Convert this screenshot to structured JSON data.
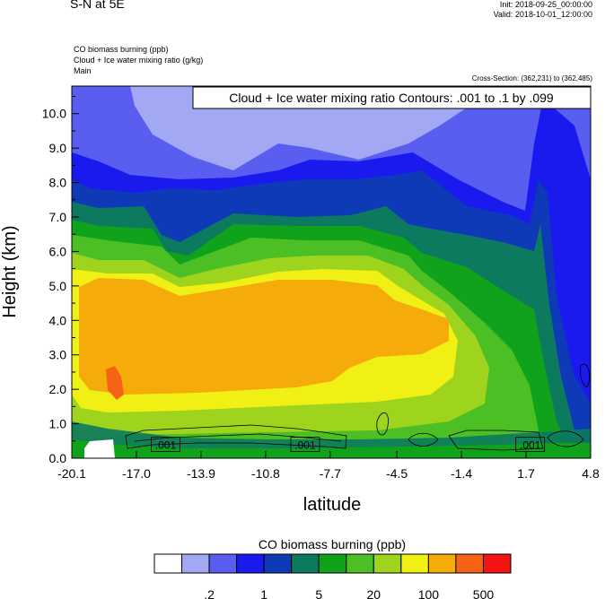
{
  "header": {
    "title": "S-N at 5E",
    "init": "Init: 2018-09-25_00:00:00",
    "valid": "Valid: 2018-10-01_12:00:00",
    "var1": "CO biomass burning   (ppb)",
    "var2": "Cloud + Ice water mixing ratio   (g/kg)",
    "var3": "Main",
    "cross_section": "Cross-Section: (362,231) to (362,485)"
  },
  "chart_data": {
    "type": "heatmap",
    "xlabel": "latitude",
    "ylabel": "Height (km)",
    "xlim": [
      -20.1,
      4.8
    ],
    "ylim": [
      0,
      10.8
    ],
    "x_ticks": [
      "-20.1",
      "-17.0",
      "-13.9",
      "-10.8",
      "-7.7",
      "-4.5",
      "-1.4",
      "1.7",
      "4.8"
    ],
    "y_ticks": [
      "0.0",
      "1.0",
      "2.0",
      "3.0",
      "4.0",
      "5.0",
      "6.0",
      "7.0",
      "8.0",
      "9.0",
      "10.0"
    ],
    "contour_title": "Cloud + Ice water mixing ratio Contours: .001 to .1 by .099",
    "contour_labels": [
      ".001",
      ".001",
      ".001"
    ],
    "colorbar": {
      "title": "CO biomass burning  (ppb)",
      "labels": [
        ".2",
        "1",
        "5",
        "20",
        "100",
        "500"
      ],
      "colors": [
        "#ffffff",
        "#a3a8f5",
        "#5a5ef0",
        "#1a1aef",
        "#0e3ab8",
        "#0b7a5e",
        "#11a21c",
        "#4cbf24",
        "#9ed31e",
        "#f0f014",
        "#f5ab0a",
        "#f56416",
        "#f51414"
      ]
    }
  }
}
